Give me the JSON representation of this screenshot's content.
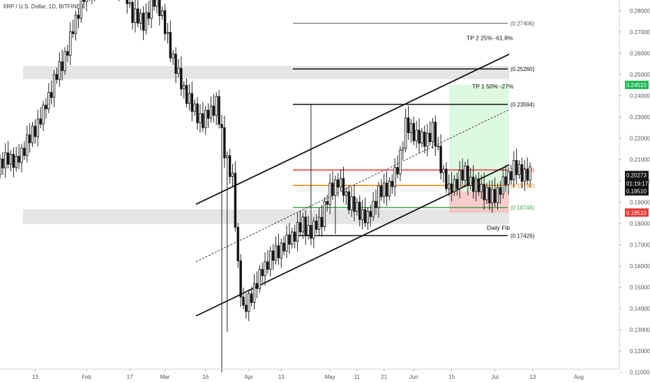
{
  "chart_data": {
    "type": "candlestick",
    "title": "XRP / U.S. Dollar, 1D, BITFINEX",
    "ylim": [
      0.105,
      0.285
    ],
    "y_ticks": [
      "0.28000",
      "0.27000",
      "0.26000",
      "0.25000",
      "0.24000",
      "0.23000",
      "0.22000",
      "0.21000",
      "0.20000",
      "0.19000",
      "0.18000",
      "0.17000",
      "0.16000",
      "0.15000",
      "0.14000",
      "0.13000",
      "0.12000",
      "0.11000"
    ],
    "x_ticks": [
      "13",
      "Feb",
      "17",
      "Mar",
      "16",
      "Apr",
      "13",
      "May",
      "11",
      "21",
      "Jun",
      "15",
      "Jul",
      "13",
      "Aug"
    ],
    "x_tick_days": [
      13,
      32,
      48,
      61,
      76,
      92,
      104,
      122,
      132,
      142,
      153,
      167,
      183,
      197,
      214
    ],
    "candles": [],
    "fib_levels": [
      {
        "value": 0.27406,
        "label": "(0.27406)",
        "color": "#555555"
      },
      {
        "value": 0.2526,
        "label": "(0.25260)",
        "color": "#111111"
      },
      {
        "value": 0.23594,
        "label": "(0.23594)",
        "color": "#111111"
      },
      {
        "value": 0.2051,
        "label": "(0.20510)",
        "color": "#e53935"
      },
      {
        "value": 0.19782,
        "label": "(0.19782)",
        "color": "#f57c00"
      },
      {
        "value": 0.18746,
        "label": "(0.18746)",
        "color": "#43a047"
      },
      {
        "value": 0.17426,
        "label": "(0.17426)",
        "color": "#111111"
      }
    ],
    "annotations": {
      "tp2": "TP 2  25%  -61.8%",
      "tp1": "TP 1  50%  -27%",
      "fib": "Daily Fib"
    },
    "price_badges": [
      {
        "value": 0.2451,
        "label": "0.24510",
        "color": "#1db954"
      },
      {
        "value": 0.20273,
        "label": "0.20273",
        "color": "#111111"
      },
      {
        "value": 0.19883,
        "label": "01:19:17",
        "color": "#111111"
      },
      {
        "value": 0.1951,
        "label": "0.19510",
        "color": "#111111"
      },
      {
        "value": 0.1851,
        "label": "0.18510",
        "color": "#e53935"
      }
    ],
    "zones": [
      {
        "from": 0.2478,
        "to": 0.254
      },
      {
        "from": 0.1797,
        "to": 0.1866
      }
    ],
    "position": {
      "target": 0.2451,
      "entry": 0.1951,
      "stop": 0.1851
    }
  }
}
